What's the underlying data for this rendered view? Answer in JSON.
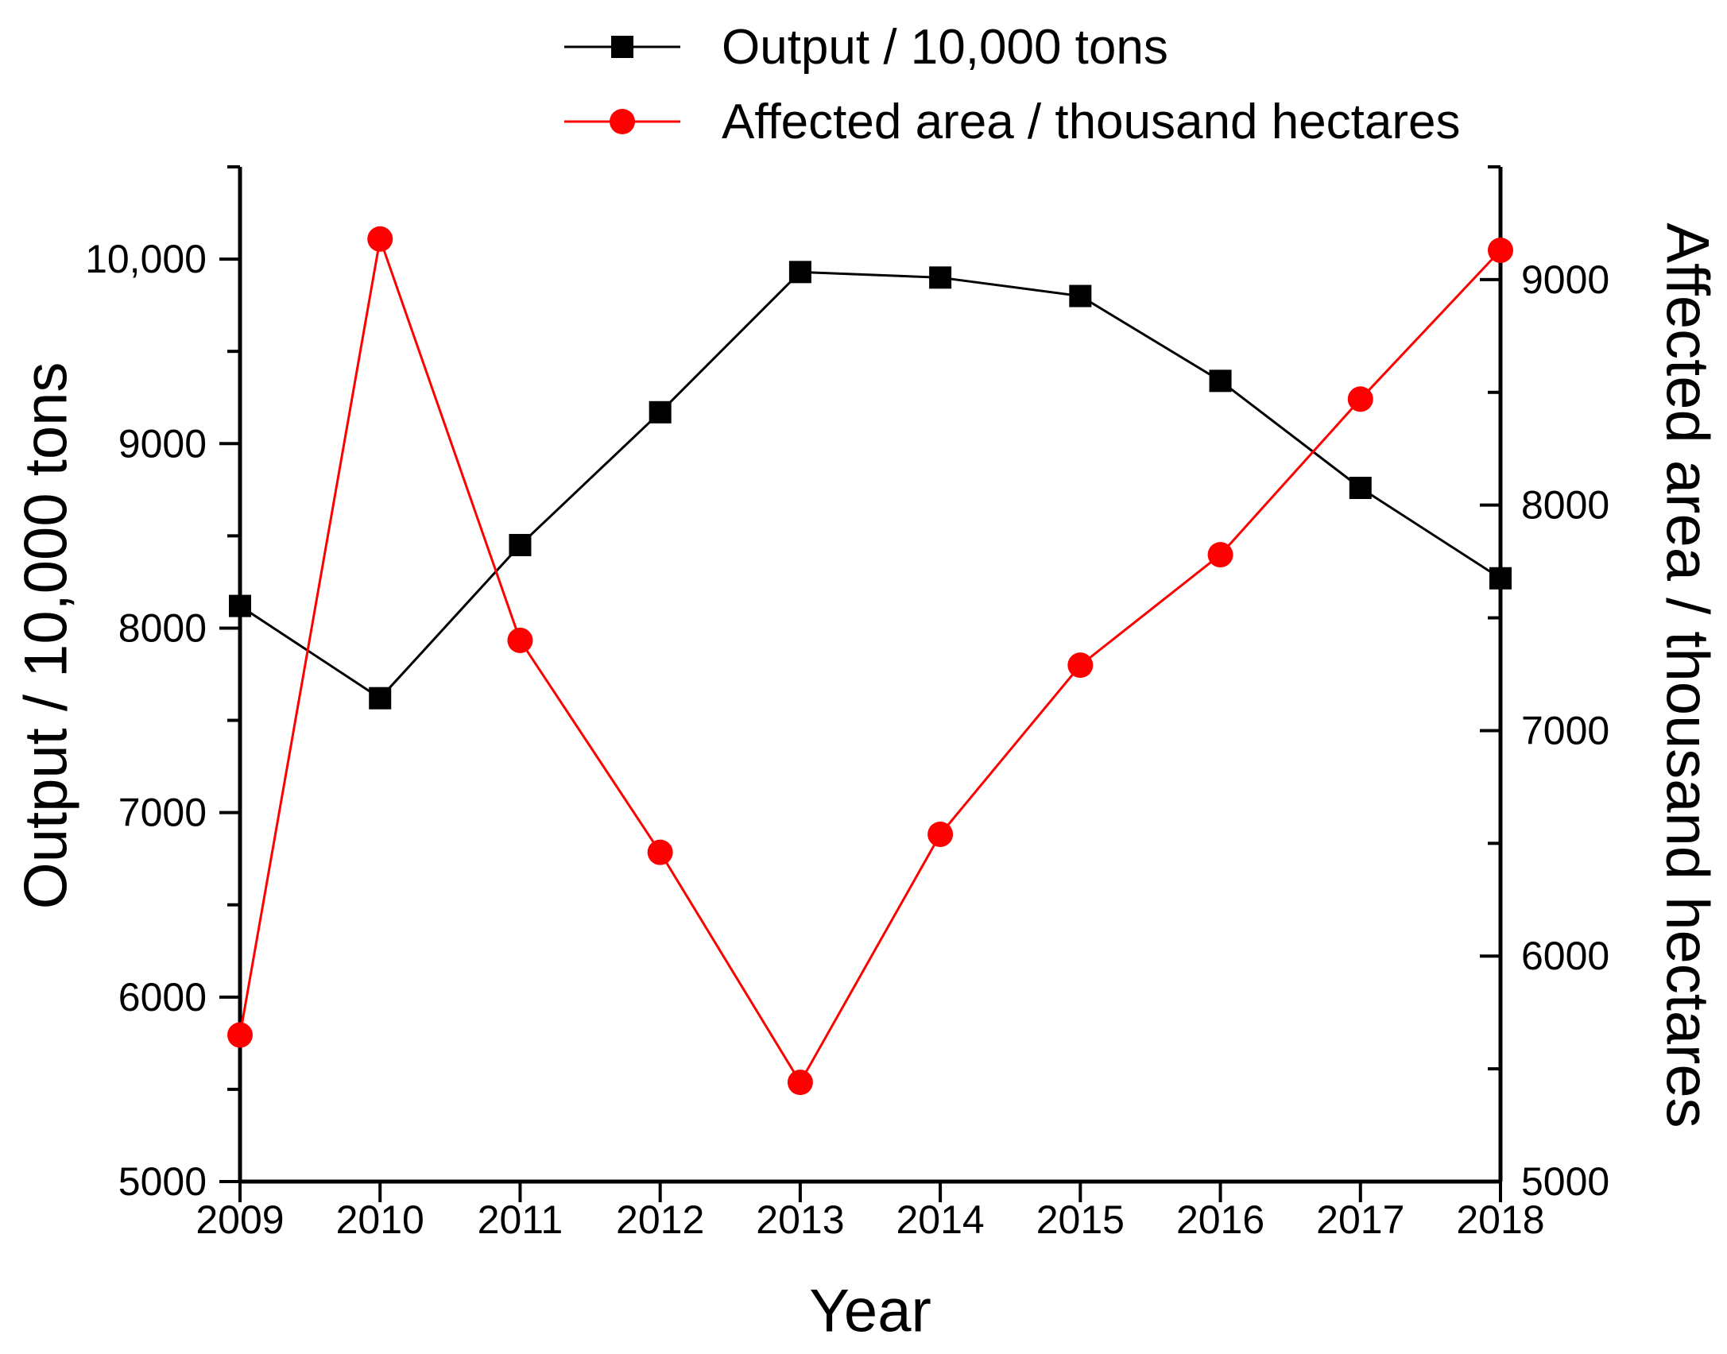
{
  "figure": {
    "background": "#ffffff"
  },
  "chart_data": {
    "type": "line",
    "title": "",
    "x": [
      2009,
      2010,
      2011,
      2012,
      2013,
      2014,
      2015,
      2016,
      2017,
      2018
    ],
    "xlabel": "Year",
    "grid": false,
    "legend_position": "top-center",
    "series": [
      {
        "name": "Output / 10,000 tons",
        "axis": "left",
        "color": "#000000",
        "marker": "square",
        "values": [
          8120,
          7620,
          8450,
          9170,
          9930,
          9900,
          9800,
          9340,
          8760,
          8270
        ]
      },
      {
        "name": "Affected area / thousand hectares",
        "axis": "right",
        "color": "#ff0000",
        "marker": "circle",
        "values": [
          5650,
          9180,
          7400,
          6460,
          5440,
          6540,
          7290,
          7780,
          8470,
          9130
        ]
      }
    ],
    "left_axis": {
      "label": "Output / 10,000 tons",
      "min": 5000,
      "max": 10500,
      "major_step": 1000,
      "minor_step": 500,
      "major_tick_labels": [
        "5000",
        "6000",
        "7000",
        "8000",
        "9000",
        "10,000"
      ]
    },
    "right_axis": {
      "label": "Affected area / thousand hectares",
      "min": 5000,
      "max": 9500,
      "major_step": 1000,
      "minor_step": 500,
      "major_tick_labels": [
        "5000",
        "6000",
        "7000",
        "8000",
        "9000"
      ]
    },
    "x_axis": {
      "label": "Year",
      "tick_labels": [
        "2009",
        "2010",
        "2011",
        "2012",
        "2013",
        "2014",
        "2015",
        "2016",
        "2017",
        "2018"
      ]
    }
  }
}
